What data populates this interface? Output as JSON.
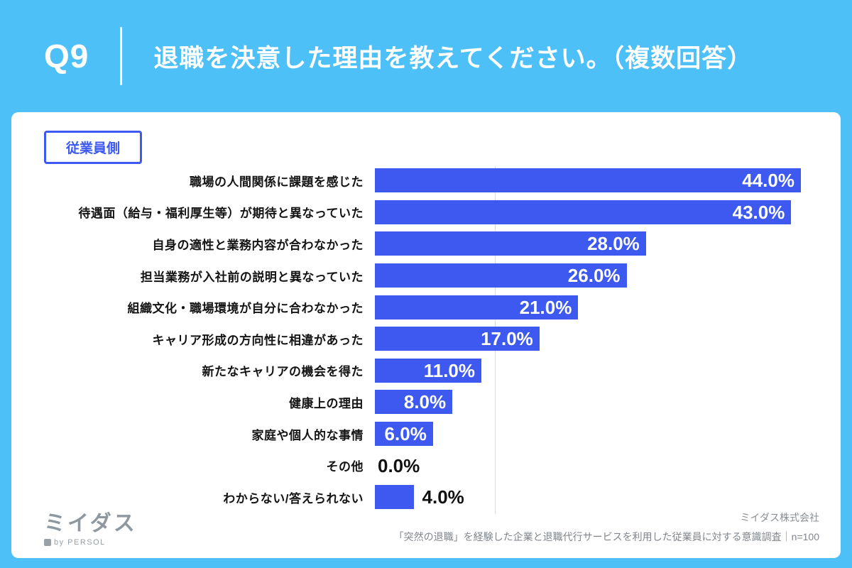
{
  "colors": {
    "background": "#4EC0F8",
    "bar": "#3D59EF",
    "badge_blue": "#3D59EF",
    "card": "#FFFFFF",
    "header_text": "#FFFFFF",
    "muted_gray": "#8E989E"
  },
  "header": {
    "question_number": "Q9",
    "title": "退職を決意した理由を教えてください。（複数回答）"
  },
  "panel": {
    "badge": "従業員側"
  },
  "chart_data": {
    "type": "bar",
    "orientation": "horizontal",
    "title": "退職を決意した理由を教えてください。（複数回答）",
    "categories": [
      "職場の人間関係に課題を感じた",
      "待遇面（給与・福利厚生等）が期待と異なっていた",
      "自身の適性と業務内容が合わなかった",
      "担当業務が入社前の説明と異なっていた",
      "組織文化・職場環境が自分に合わなかった",
      "キャリア形成の方向性に相違があった",
      "新たなキャリアの機会を得た",
      "健康上の理由",
      "家庭や個人的な事情",
      "その他",
      "わからない/答えられない"
    ],
    "values": [
      44.0,
      43.0,
      28.0,
      26.0,
      21.0,
      17.0,
      11.0,
      8.0,
      6.0,
      0.0,
      4.0
    ],
    "value_labels": [
      "44.0%",
      "43.0%",
      "28.0%",
      "26.0%",
      "21.0%",
      "17.0%",
      "11.0%",
      "8.0%",
      "6.0%",
      "0.0%",
      "4.0%"
    ],
    "label_inside": [
      true,
      true,
      true,
      true,
      true,
      true,
      true,
      true,
      true,
      false,
      false
    ],
    "xlim": [
      0,
      44
    ],
    "grid": "single faint vertical gridline",
    "legend": "none",
    "bar_color": "#3D59EF"
  },
  "footer": {
    "logo_text": "ミイダス",
    "logo_sub": "by PERSOL",
    "company": "ミイダス株式会社",
    "source": "「突然の退職」を経験した企業と退職代行サービスを利用した従業員に対する意識調査｜n=100"
  }
}
